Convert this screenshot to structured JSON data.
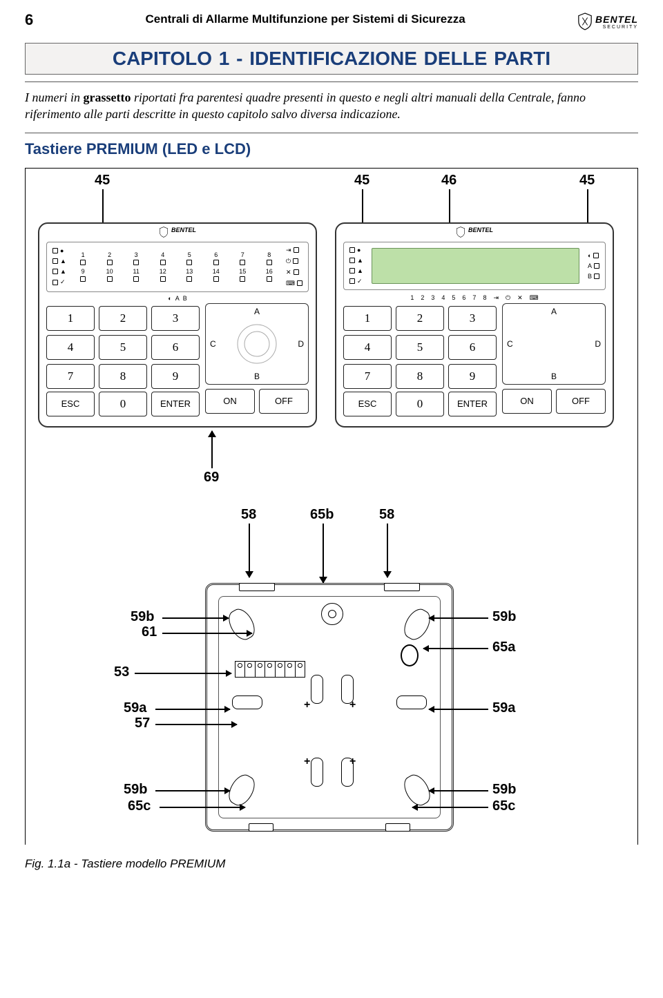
{
  "header": {
    "page_number": "6",
    "running_title": "Centrali di Allarme Multifunzione per Sistemi di Sicurezza",
    "brand": "BENTEL",
    "brand_sub": "SECURITY"
  },
  "chapter": {
    "prefix": "CAPITOLO 1 - ",
    "title_rest": "IDENTIFICAZIONE DELLE PARTI"
  },
  "intro_text": "I numeri in grassetto riportati fra parentesi quadre presenti in questo e negli altri manuali della Centrale, fanno riferimento alle parti descritte in questo capitolo salvo diversa indicazione.",
  "section_head": "Tastiere PREMIUM (LED e LCD)",
  "callouts_top": {
    "a": "45",
    "b": "45",
    "c": "46",
    "d": "45"
  },
  "callout_mid": "69",
  "callouts_row2": {
    "a": "58",
    "b": "65b",
    "c": "58"
  },
  "callouts_left": [
    "59b",
    "61",
    "53",
    "59a",
    "57",
    "59b",
    "65c"
  ],
  "callouts_right": [
    "59b",
    "65a",
    "59a",
    "59b",
    "65c"
  ],
  "keypad": {
    "leds_top": [
      "1",
      "2",
      "3",
      "4",
      "5",
      "6",
      "7",
      "8"
    ],
    "leds_bottom": [
      "9",
      "10",
      "11",
      "12",
      "13",
      "14",
      "15",
      "16"
    ],
    "lcd_nums": [
      "1",
      "2",
      "3",
      "4",
      "5",
      "6",
      "7",
      "8"
    ],
    "keys": [
      "1",
      "2",
      "3",
      "4",
      "5",
      "6",
      "7",
      "8",
      "9"
    ],
    "esc": "ESC",
    "zero": "0",
    "enter": "ENTER",
    "on": "ON",
    "off": "OFF",
    "abcd": {
      "a": "A",
      "b": "B",
      "c": "C",
      "d": "D"
    }
  },
  "figure_caption": "Fig. 1.1a - Tastiere modello PREMIUM"
}
